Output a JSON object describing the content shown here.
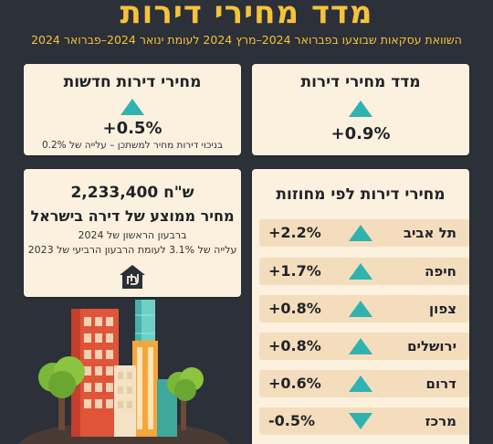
{
  "header": {
    "title": "מדד מחירי דירות",
    "subtitle": "השוואת עסקאות שבוצעו בפברואר 2024–מרץ 2024 לעומת ינואר 2024–פברואר 2024"
  },
  "index_card": {
    "title": "מדד מחירי דירות",
    "value": "+0.9%",
    "direction": "up"
  },
  "new_card": {
    "title": "מחירי דירות חדשות",
    "value": "+0.5%",
    "note": "בניכוי דירות מחיר למשתכן – עלייה של 0.2%",
    "direction": "up"
  },
  "avg_card": {
    "price": "2,233,400 ש\"ח",
    "title": "מחיר ממוצע של דירה בישראל",
    "period": "ברבעון הראשון של 2024",
    "change": "עלייה של 3.1% לעומת הרבעון הרביעי של 2023",
    "icon": "shekel-house-icon"
  },
  "districts": {
    "title": "מחירי דירות לפי מחוזות",
    "rows": [
      {
        "name": "תל אביב",
        "value": "+2.2%",
        "direction": "up"
      },
      {
        "name": "חיפה",
        "value": "+1.7%",
        "direction": "up"
      },
      {
        "name": "צפון",
        "value": "+0.8%",
        "direction": "up"
      },
      {
        "name": "ירושלים",
        "value": "+0.8%",
        "direction": "up"
      },
      {
        "name": "דרום",
        "value": "+0.6%",
        "direction": "up"
      },
      {
        "name": "מרכז",
        "value": "-0.5%",
        "direction": "down"
      }
    ]
  },
  "colors": {
    "background": "#2b3039",
    "accent": "#f6c23a",
    "card": "#fbf1de",
    "row": "#f4ddbd",
    "arrow": "#2fb3b1"
  }
}
